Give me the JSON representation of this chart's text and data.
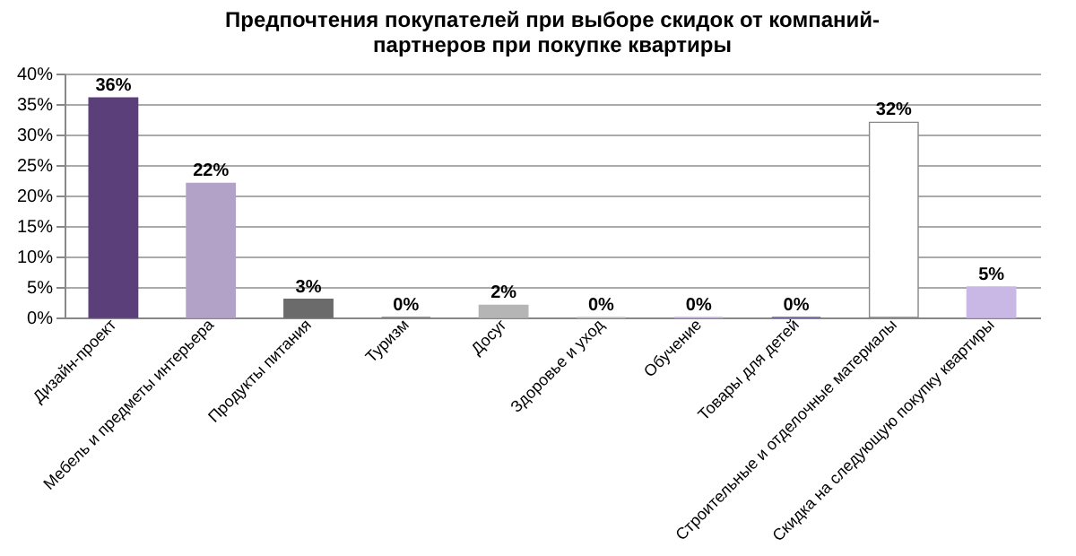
{
  "chart_data": {
    "type": "bar",
    "title": "Предпочтения покупателей при выборе скидок от компаний-\nпартнеров при покупке квартиры",
    "categories": [
      "Дизайн-проект",
      "Мебель и предметы  интерьера",
      "Продукты питания",
      "Туризм",
      "Досуг",
      "Здоровье и уход",
      "Обучение",
      "Товары для детей",
      "Строительные и отделочные  материалы",
      "Скидка на следующую покупку квартиры"
    ],
    "values": [
      36,
      22,
      3,
      0,
      2,
      0,
      0,
      0,
      32,
      5
    ],
    "colors": [
      "#5b3f7a",
      "#b3a2c7",
      "#6b6b6b",
      "#7f7f7f",
      "#b5b5b5",
      "#c8c8c8",
      "#c9b8e6",
      "#7060a0",
      "#ffffff",
      "#c9b8e6"
    ],
    "value_labels": [
      "36%",
      "22%",
      "3%",
      "0%",
      "2%",
      "0%",
      "0%",
      "0%",
      "32%",
      "5%"
    ],
    "ylim": [
      0,
      40
    ],
    "yticks": [
      {
        "value": 0,
        "label": "0%"
      },
      {
        "value": 5,
        "label": "5%"
      },
      {
        "value": 10,
        "label": "10%"
      },
      {
        "value": 15,
        "label": "15%"
      },
      {
        "value": 20,
        "label": "20%"
      },
      {
        "value": 25,
        "label": "25%"
      },
      {
        "value": 30,
        "label": "30%"
      },
      {
        "value": 35,
        "label": "35%"
      },
      {
        "value": 40,
        "label": "40%"
      }
    ],
    "grid": "y"
  }
}
